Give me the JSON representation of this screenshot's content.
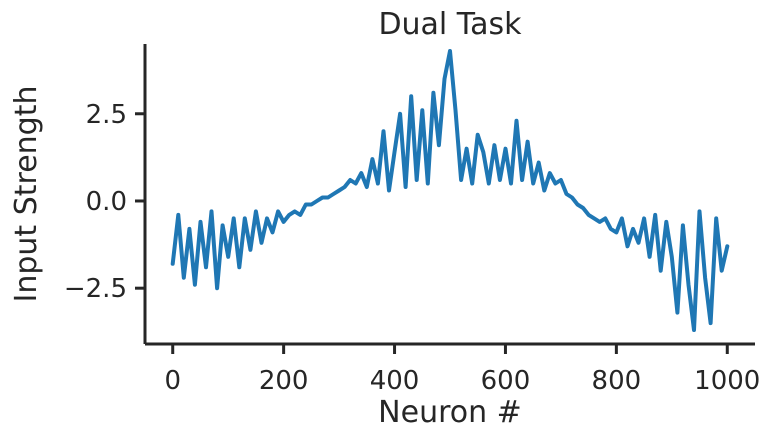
{
  "chart_data": {
    "type": "line",
    "title": "Dual Task",
    "xlabel": "Neuron #",
    "ylabel": "Input Strength",
    "xlim": [
      -50,
      1050
    ],
    "ylim": [
      -4.1,
      4.5
    ],
    "xticks": [
      0,
      200,
      400,
      600,
      800,
      1000
    ],
    "xtick_labels": [
      "0",
      "200",
      "400",
      "600",
      "800",
      "1000"
    ],
    "yticks": [
      -2.5,
      0.0,
      2.5
    ],
    "ytick_labels": [
      "−2.5",
      "0.0",
      "2.5"
    ],
    "grid": false,
    "legend": "none",
    "color": "#1f77b4",
    "series": [
      {
        "x": [
          0,
          10,
          20,
          30,
          40,
          50,
          60,
          70,
          80,
          90,
          100,
          110,
          120,
          130,
          140,
          150,
          160,
          170,
          180,
          190,
          200,
          210,
          220,
          230,
          240,
          250,
          260,
          270,
          280,
          290,
          300,
          310,
          320,
          330,
          340,
          350,
          360,
          370,
          380,
          390,
          400,
          410,
          420,
          430,
          440,
          450,
          460,
          470,
          480,
          490,
          500,
          510,
          520,
          530,
          540,
          550,
          560,
          570,
          580,
          590,
          600,
          610,
          620,
          630,
          640,
          650,
          660,
          670,
          680,
          690,
          700,
          710,
          720,
          730,
          740,
          750,
          760,
          770,
          780,
          790,
          800,
          810,
          820,
          830,
          840,
          850,
          860,
          870,
          880,
          890,
          900,
          910,
          920,
          930,
          940,
          950,
          960,
          970,
          980,
          990,
          1000
        ],
        "y": [
          -1.8,
          -0.4,
          -2.2,
          -0.8,
          -2.4,
          -0.6,
          -1.9,
          -0.3,
          -2.5,
          -0.7,
          -1.6,
          -0.5,
          -1.9,
          -0.5,
          -1.4,
          -0.3,
          -1.2,
          -0.5,
          -0.9,
          -0.3,
          -0.6,
          -0.4,
          -0.3,
          -0.4,
          -0.1,
          -0.1,
          0.0,
          0.1,
          0.1,
          0.2,
          0.3,
          0.4,
          0.6,
          0.5,
          0.8,
          0.4,
          1.2,
          0.5,
          2.0,
          0.3,
          1.4,
          2.5,
          0.4,
          3.0,
          0.6,
          2.6,
          0.5,
          3.1,
          1.6,
          3.5,
          4.3,
          2.6,
          0.6,
          1.5,
          0.5,
          1.9,
          1.4,
          0.5,
          1.6,
          0.6,
          1.5,
          0.5,
          2.3,
          0.6,
          1.7,
          0.5,
          1.1,
          0.3,
          0.8,
          0.5,
          0.6,
          0.2,
          0.1,
          -0.1,
          -0.2,
          -0.4,
          -0.5,
          -0.6,
          -0.5,
          -0.8,
          -0.9,
          -0.5,
          -1.3,
          -0.8,
          -1.2,
          -0.5,
          -1.6,
          -0.4,
          -2.0,
          -0.6,
          -1.6,
          -3.2,
          -0.7,
          -2.4,
          -3.7,
          -0.3,
          -2.2,
          -3.5,
          -0.5,
          -2.0,
          -1.3
        ]
      }
    ]
  }
}
